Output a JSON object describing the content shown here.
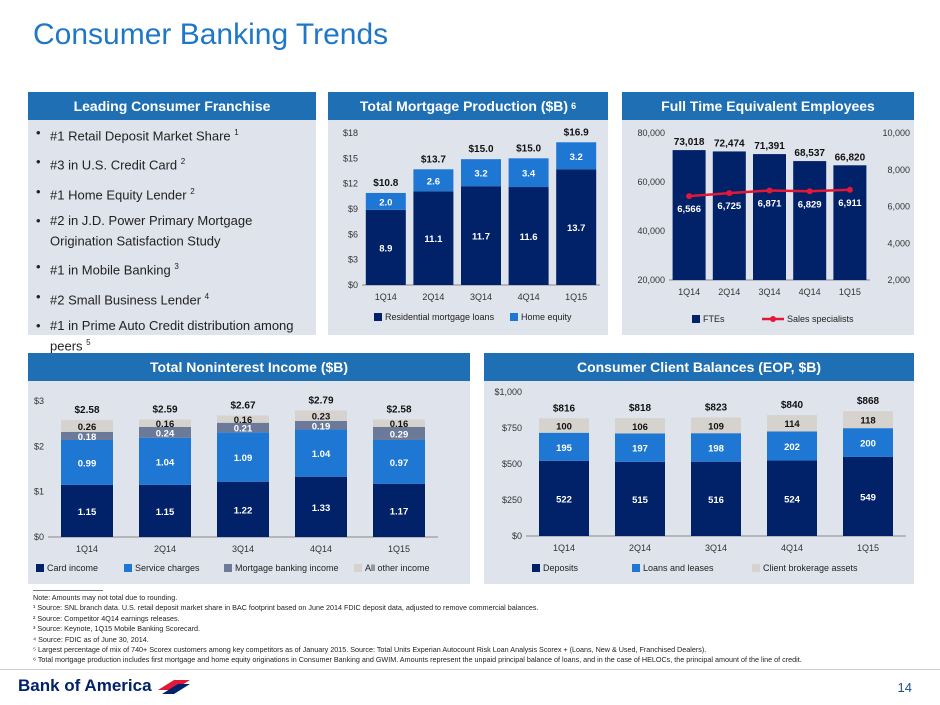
{
  "title": "Consumer Banking Trends",
  "panels": {
    "franchise": {
      "header": "Leading Consumer Franchise"
    },
    "mortgage": {
      "header": "Total Mortgage Production ($B)",
      "header_sup": "6"
    },
    "fte": {
      "header": "Full Time Equivalent Employees"
    },
    "nonint": {
      "header": "Total Noninterest Income ($B)"
    },
    "balances": {
      "header": "Consumer Client Balances (EOP, $B)"
    }
  },
  "bullets": [
    {
      "text": "#1 Retail Deposit Market Share",
      "sup": "1"
    },
    {
      "text": "#3 in U.S. Credit Card",
      "sup": "2"
    },
    {
      "text": "#1 Home Equity Lender",
      "sup": "2"
    },
    {
      "text": "#2 in J.D. Power Primary Mortgage Origination Satisfaction Study",
      "sup": ""
    },
    {
      "text": "#1 in Mobile Banking",
      "sup": "3"
    },
    {
      "text": "#2 Small Business Lender",
      "sup": "4"
    },
    {
      "text": "#1 in Prime Auto Credit distribution among peers",
      "sup": "5"
    }
  ],
  "chart_data": [
    {
      "id": "mortgage",
      "type": "bar",
      "stacked": true,
      "categories": [
        "1Q14",
        "2Q14",
        "3Q14",
        "4Q14",
        "1Q15"
      ],
      "series": [
        {
          "name": "Residential mortgage loans",
          "color": "#012169",
          "values": [
            8.9,
            11.1,
            11.7,
            11.6,
            13.7
          ],
          "labels": [
            "8.9",
            "11.1",
            "11.7",
            "11.6",
            "13.7"
          ]
        },
        {
          "name": "Home equity",
          "color": "#1f77d4",
          "values": [
            2.0,
            2.6,
            3.2,
            3.4,
            3.2
          ],
          "labels": [
            "2.0",
            "2.6",
            "3.2",
            "3.4",
            "3.2"
          ]
        }
      ],
      "totals": [
        "$10.8",
        "$13.7",
        "$15.0",
        "$15.0",
        "$16.9"
      ],
      "ylim": [
        0,
        18
      ],
      "yticks": [
        "$0",
        "$3",
        "$6",
        "$9",
        "$12",
        "$15",
        "$18"
      ],
      "legend": "bottom"
    },
    {
      "id": "fte",
      "type": "bar",
      "categories": [
        "1Q14",
        "2Q14",
        "3Q14",
        "4Q14",
        "1Q15"
      ],
      "series": [
        {
          "name": "FTEs",
          "color": "#012169",
          "values": [
            73018,
            72474,
            71391,
            68537,
            66820
          ],
          "labels": [
            "73,018",
            "72,474",
            "71,391",
            "68,537",
            "66,820"
          ]
        },
        {
          "name": "Sales specialists",
          "color": "#e31837",
          "type": "line",
          "axis": "right",
          "values": [
            6566,
            6725,
            6871,
            6829,
            6911
          ],
          "labels": [
            "6,566",
            "6,725",
            "6,871",
            "6,829",
            "6,911"
          ]
        }
      ],
      "ylim": [
        20000,
        80000
      ],
      "yticks": [
        "20,000",
        "40,000",
        "60,000",
        "80,000"
      ],
      "y2lim": [
        2000,
        10000
      ],
      "y2ticks": [
        "2,000",
        "4,000",
        "6,000",
        "8,000",
        "10,000"
      ],
      "legend": "bottom"
    },
    {
      "id": "nonint",
      "type": "bar",
      "stacked": true,
      "categories": [
        "1Q14",
        "2Q14",
        "3Q14",
        "4Q14",
        "1Q15"
      ],
      "series": [
        {
          "name": "Card income",
          "color": "#012169",
          "values": [
            1.15,
            1.15,
            1.22,
            1.33,
            1.17
          ],
          "labels": [
            "1.15",
            "1.15",
            "1.22",
            "1.33",
            "1.17"
          ]
        },
        {
          "name": "Service charges",
          "color": "#1f77d4",
          "values": [
            0.99,
            1.04,
            1.09,
            1.04,
            0.97
          ],
          "labels": [
            "0.99",
            "1.04",
            "1.09",
            "1.04",
            "0.97"
          ]
        },
        {
          "name": "Mortgage banking income",
          "color": "#6b7a99",
          "values": [
            0.18,
            0.24,
            0.21,
            0.19,
            0.29
          ],
          "labels": [
            "0.18",
            "0.24",
            "0.21",
            "0.19",
            "0.29"
          ]
        },
        {
          "name": "All other income",
          "color": "#d6d3cf",
          "values": [
            0.26,
            0.16,
            0.16,
            0.23,
            0.16
          ],
          "labels": [
            "0.26",
            "0.16",
            "0.16",
            "0.23",
            "0.16"
          ]
        }
      ],
      "totals": [
        "$2.58",
        "$2.59",
        "$2.67",
        "$2.79",
        "$2.58"
      ],
      "ylim": [
        0,
        3
      ],
      "yticks": [
        "$0",
        "$1",
        "$2",
        "$3"
      ],
      "legend": "bottom"
    },
    {
      "id": "balances",
      "type": "bar",
      "stacked": true,
      "categories": [
        "1Q14",
        "2Q14",
        "3Q14",
        "4Q14",
        "1Q15"
      ],
      "series": [
        {
          "name": "Deposits",
          "color": "#012169",
          "values": [
            522,
            515,
            516,
            524,
            549
          ],
          "labels": [
            "522",
            "515",
            "516",
            "524",
            "549"
          ]
        },
        {
          "name": "Loans and leases",
          "color": "#1f77d4",
          "values": [
            195,
            197,
            198,
            202,
            200
          ],
          "labels": [
            "195",
            "197",
            "198",
            "202",
            "200"
          ]
        },
        {
          "name": "Client brokerage assets",
          "color": "#d6d3cf",
          "values": [
            100,
            106,
            109,
            114,
            118
          ],
          "labels": [
            "100",
            "106",
            "109",
            "114",
            "118"
          ]
        }
      ],
      "totals": [
        "$816",
        "$818",
        "$823",
        "$840",
        "$868"
      ],
      "ylim": [
        0,
        1000
      ],
      "yticks": [
        "$0",
        "$250",
        "$500",
        "$750",
        "$1,000"
      ],
      "legend": "bottom"
    }
  ],
  "notes": [
    "Note: Amounts may not total due to rounding.",
    "¹ Source: SNL branch data. U.S. retail deposit market share in BAC footprint based on June 2014 FDIC deposit data, adjusted to remove commercial balances.",
    "² Source: Competitor 4Q14 earnings releases.",
    "³ Source: Keynote, 1Q15 Mobile Banking Scorecard.",
    "⁴ Source: FDIC as of June 30, 2014.",
    "⁵ Largest percentage of mix of 740+ Scorex customers among key competitors as of January 2015. Source: Total Units Experian Autocount Risk Loan Analysis Scorex + (Loans, New & Used, Franchised Dealers).",
    "⁶ Total mortgage production includes first mortgage and home equity originations in Consumer Banking and GWIM. Amounts represent the unpaid principal balance of loans, and in the case of HELOCs, the principal amount of the line of credit."
  ],
  "footer": {
    "logo_text": "Bank of America",
    "page_number": "14"
  },
  "colors": {
    "brand_blue": "#1f6fb5",
    "navy": "#012169",
    "red": "#e31837"
  }
}
